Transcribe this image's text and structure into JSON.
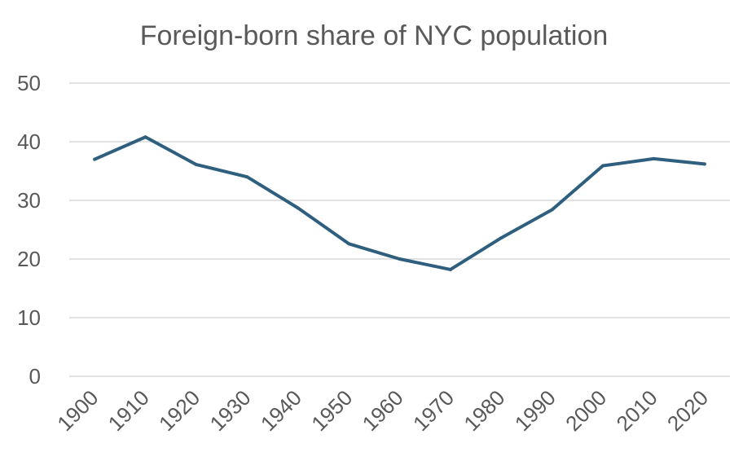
{
  "chart_data": {
    "type": "line",
    "title": "Foreign-born share of NYC population",
    "xlabel": "",
    "ylabel": "",
    "categories": [
      "1900",
      "1910",
      "1920",
      "1930",
      "1940",
      "1950",
      "1960",
      "1970",
      "1980",
      "1990",
      "2000",
      "2010",
      "2020"
    ],
    "series": [
      {
        "values": [
          37.0,
          40.8,
          36.1,
          34.0,
          28.7,
          22.6,
          20.0,
          18.2,
          23.6,
          28.4,
          35.9,
          37.1,
          36.2
        ]
      }
    ],
    "ylim": [
      0,
      50
    ],
    "yticks": [
      "0",
      "10",
      "20",
      "30",
      "40",
      "50"
    ],
    "grid": true,
    "legend": "none",
    "colors": {
      "line": "#2f5f7f",
      "grid": "#d9d9d9",
      "text": "#595959"
    }
  }
}
